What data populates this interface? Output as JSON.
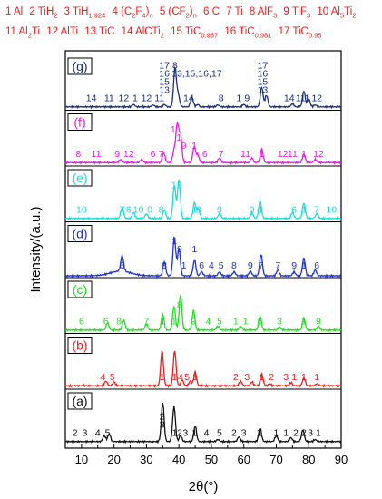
{
  "chart_data": {
    "type": "line",
    "x": {
      "label": "2θ(°)",
      "range": [
        5,
        90
      ],
      "ticks": [
        10,
        20,
        30,
        40,
        50,
        60,
        70,
        80,
        90
      ]
    },
    "y": {
      "label": "Intensity/(a.u.)",
      "units": "a.u."
    },
    "legend": {
      "placement": "top",
      "entries": [
        {
          "id": "1",
          "text": "Al"
        },
        {
          "id": "2",
          "text": "TiH",
          "sub": "2"
        },
        {
          "id": "3",
          "text": "TiH",
          "sub": "1.924"
        },
        {
          "id": "4",
          "text": "(C",
          "sub": "2",
          "text2": "F",
          "sub2": "4",
          "text3": ")",
          "sub3": "n"
        },
        {
          "id": "5",
          "text": "(CF",
          "sub": "2",
          "text2": ")",
          "sub2": "n"
        },
        {
          "id": "6",
          "text": "C"
        },
        {
          "id": "7",
          "text": "Ti"
        },
        {
          "id": "8",
          "text": "AlF",
          "sub": "3"
        },
        {
          "id": "9",
          "text": "TiF",
          "sub": "3"
        },
        {
          "id": "10",
          "text": "Al",
          "sub": "5",
          "text2": "Ti",
          "sub2": "2"
        },
        {
          "id": "11",
          "text": "Al",
          "sub": "2",
          "text2": "Ti"
        },
        {
          "id": "12",
          "text": "AlTi"
        },
        {
          "id": "13",
          "text": "TiC"
        },
        {
          "id": "14",
          "text": "AlCTi",
          "sub": "2"
        },
        {
          "id": "15",
          "text": "TiC",
          "sub": "0.957"
        },
        {
          "id": "16",
          "text": "TiC",
          "sub": "0.981"
        },
        {
          "id": "17",
          "text": "TiC",
          "sub": "0.95"
        }
      ]
    },
    "series": [
      {
        "name": "(g)",
        "color": "#1a2f7a",
        "peaks": [
          [
            26,
            0.06
          ],
          [
            32,
            0.05
          ],
          [
            35.5,
            0.06
          ],
          [
            38.8,
            1.0
          ],
          [
            39.8,
            0.3
          ],
          [
            44,
            0.25
          ],
          [
            45.8,
            0.06
          ],
          [
            52,
            0.05
          ],
          [
            60,
            0.06
          ],
          [
            65.5,
            0.5
          ],
          [
            67,
            0.3
          ],
          [
            75,
            0.08
          ],
          [
            78.5,
            0.4
          ],
          [
            80,
            0.2
          ],
          [
            82,
            0.05
          ]
        ],
        "annotations": [
          {
            "x": 13,
            "t": "14"
          },
          {
            "x": 18.5,
            "t": "11"
          },
          {
            "x": 23,
            "t": "12"
          },
          {
            "x": 26.5,
            "t": "1"
          },
          {
            "x": 30,
            "t": "12"
          },
          {
            "x": 34,
            "t": "11"
          },
          {
            "x": 35.5,
            "t": "13",
            "l": 1
          },
          {
            "x": 35.5,
            "t": "15",
            "l": 2
          },
          {
            "x": 35.5,
            "t": "16",
            "l": 3
          },
          {
            "x": 35.5,
            "t": "17",
            "l": 4
          },
          {
            "x": 38.8,
            "t": "8",
            "l": 4
          },
          {
            "x": 45.5,
            "t": "13,15,16,17",
            "l": 3
          },
          {
            "x": 43,
            "t": "14"
          },
          {
            "x": 53,
            "t": "8"
          },
          {
            "x": 58.5,
            "t": "1"
          },
          {
            "x": 61,
            "t": "9"
          },
          {
            "x": 65.8,
            "t": "13",
            "l": 1
          },
          {
            "x": 65.8,
            "t": "15",
            "l": 2
          },
          {
            "x": 65.8,
            "t": "16",
            "l": 3
          },
          {
            "x": 65.8,
            "t": "17",
            "l": 4
          },
          {
            "x": 74,
            "t": "14"
          },
          {
            "x": 77.5,
            "t": "11"
          },
          {
            "x": 79.5,
            "t": "1"
          },
          {
            "x": 82.5,
            "t": "12"
          }
        ]
      },
      {
        "name": "(f)",
        "color": "#e020e0",
        "peaks": [
          [
            22,
            0.08
          ],
          [
            28.5,
            0.08
          ],
          [
            35.3,
            0.25
          ],
          [
            38.5,
            0.3
          ],
          [
            39.5,
            1.0
          ],
          [
            40.5,
            0.7
          ],
          [
            44.7,
            0.4
          ],
          [
            45.8,
            0.2
          ],
          [
            52.5,
            0.12
          ],
          [
            62.5,
            0.12
          ],
          [
            65.5,
            0.35
          ],
          [
            78.5,
            0.22
          ],
          [
            82,
            0.08
          ]
        ],
        "annotations": [
          {
            "x": 9,
            "t": "8"
          },
          {
            "x": 14.5,
            "t": "11"
          },
          {
            "x": 21,
            "t": "9"
          },
          {
            "x": 24.5,
            "t": "12"
          },
          {
            "x": 32,
            "t": "6"
          },
          {
            "x": 34.5,
            "t": "7"
          },
          {
            "x": 38.2,
            "t": "1",
            "l": 3
          },
          {
            "x": 40,
            "t": "1",
            "l": 2
          },
          {
            "x": 41.5,
            "t": "9",
            "l": 1
          },
          {
            "x": 44.7,
            "t": "1",
            "l": 1
          },
          {
            "x": 48,
            "t": "6"
          },
          {
            "x": 53,
            "t": "7"
          },
          {
            "x": 60.5,
            "t": "11"
          },
          {
            "x": 65.5,
            "t": "1"
          },
          {
            "x": 72,
            "t": "12"
          },
          {
            "x": 75,
            "t": "11"
          },
          {
            "x": 78.5,
            "t": "1"
          },
          {
            "x": 83,
            "t": "12"
          }
        ]
      },
      {
        "name": "(e)",
        "color": "#20d8d8",
        "peaks": [
          [
            22.5,
            0.28
          ],
          [
            26,
            0.15
          ],
          [
            30,
            0.12
          ],
          [
            35.5,
            0.22
          ],
          [
            38.6,
            0.85
          ],
          [
            40,
            1.0
          ],
          [
            44.8,
            0.4
          ],
          [
            46,
            0.25
          ],
          [
            52.5,
            0.12
          ],
          [
            62.5,
            0.15
          ],
          [
            65,
            0.45
          ],
          [
            75,
            0.15
          ],
          [
            78.5,
            0.4
          ],
          [
            82.5,
            0.12
          ]
        ],
        "annotations": [
          {
            "x": 10,
            "t": "10"
          },
          {
            "x": 22.5,
            "t": "7"
          },
          {
            "x": 24.5,
            "t": "6"
          },
          {
            "x": 27.5,
            "t": "10"
          },
          {
            "x": 31,
            "t": "0"
          },
          {
            "x": 34.5,
            "t": "8"
          },
          {
            "x": 38.5,
            "t": "1",
            "l": 3
          },
          {
            "x": 40.2,
            "t": "9",
            "l": 3
          },
          {
            "x": 44.8,
            "t": "1"
          },
          {
            "x": 46,
            "t": "8"
          },
          {
            "x": 52.5,
            "t": "9"
          },
          {
            "x": 62.5,
            "t": "9"
          },
          {
            "x": 65.2,
            "t": "1"
          },
          {
            "x": 75.5,
            "t": "6"
          },
          {
            "x": 78.5,
            "t": "1"
          },
          {
            "x": 82.5,
            "t": "7"
          },
          {
            "x": 87,
            "t": "10"
          }
        ]
      },
      {
        "name": "(d)",
        "color": "#1e32d8",
        "peaks": [
          [
            22.5,
            0.4
          ],
          [
            35.5,
            0.35
          ],
          [
            38.6,
            1.0
          ],
          [
            40,
            0.7
          ],
          [
            44.8,
            0.4
          ],
          [
            47,
            0.1
          ],
          [
            52.5,
            0.1
          ],
          [
            57,
            0.1
          ],
          [
            62,
            0.12
          ],
          [
            65.3,
            0.55
          ],
          [
            70.5,
            0.15
          ],
          [
            75.5,
            0.1
          ],
          [
            78.5,
            0.45
          ],
          [
            82,
            0.15
          ]
        ],
        "annotations": [
          {
            "x": 22.5,
            "t": "6"
          },
          {
            "x": 35.5,
            "t": "8"
          },
          {
            "x": 38.6,
            "t": "1",
            "l": 3
          },
          {
            "x": 40.2,
            "t": "9",
            "l": 2
          },
          {
            "x": 41.5,
            "t": "1"
          },
          {
            "x": 44.8,
            "t": "1",
            "l": 2
          },
          {
            "x": 47,
            "t": "6"
          },
          {
            "x": 50,
            "t": "4"
          },
          {
            "x": 53,
            "t": "5"
          },
          {
            "x": 57,
            "t": "8"
          },
          {
            "x": 62,
            "t": "9"
          },
          {
            "x": 65.3,
            "t": "7"
          },
          {
            "x": 70.5,
            "t": "7"
          },
          {
            "x": 75.5,
            "t": "9"
          },
          {
            "x": 78.5,
            "t": "1"
          },
          {
            "x": 82.5,
            "t": "6"
          }
        ]
      },
      {
        "name": "(c)",
        "color": "#22dd22",
        "peaks": [
          [
            18,
            0.18
          ],
          [
            23,
            0.25
          ],
          [
            30,
            0.15
          ],
          [
            35,
            0.4
          ],
          [
            38.5,
            0.6
          ],
          [
            40.5,
            0.9
          ],
          [
            44.5,
            0.5
          ],
          [
            52,
            0.1
          ],
          [
            59,
            0.1
          ],
          [
            65,
            0.35
          ],
          [
            71,
            0.08
          ],
          [
            78.5,
            0.3
          ],
          [
            83,
            0.1
          ]
        ],
        "annotations": [
          {
            "x": 10,
            "t": "6"
          },
          {
            "x": 17.5,
            "t": "6"
          },
          {
            "x": 21.5,
            "t": "8"
          },
          {
            "x": 30,
            "t": "7"
          },
          {
            "x": 35,
            "t": "1"
          },
          {
            "x": 38.5,
            "t": "1"
          },
          {
            "x": 40.2,
            "t": "8",
            "l": 2
          },
          {
            "x": 44.5,
            "t": "9"
          },
          {
            "x": 49,
            "t": "4"
          },
          {
            "x": 52.5,
            "t": "5"
          },
          {
            "x": 57.5,
            "t": "1"
          },
          {
            "x": 60.5,
            "t": "1"
          },
          {
            "x": 65,
            "t": "6"
          },
          {
            "x": 71,
            "t": "3"
          },
          {
            "x": 78.5,
            "t": "1"
          },
          {
            "x": 83,
            "t": "9"
          }
        ]
      },
      {
        "name": "(b)",
        "color": "#e8201f",
        "peaks": [
          [
            17.5,
            0.12
          ],
          [
            20,
            0.1
          ],
          [
            34.8,
            0.9
          ],
          [
            38.7,
            0.9
          ],
          [
            41,
            0.15
          ],
          [
            43.5,
            0.12
          ],
          [
            45,
            0.35
          ],
          [
            59,
            0.12
          ],
          [
            62.5,
            0.1
          ],
          [
            65.5,
            0.3
          ],
          [
            68,
            0.05
          ],
          [
            74.5,
            0.08
          ],
          [
            78.5,
            0.2
          ],
          [
            82.5,
            0.05
          ]
        ],
        "annotations": [
          {
            "x": 16.5,
            "t": "4"
          },
          {
            "x": 19.5,
            "t": "5"
          },
          {
            "x": 34.8,
            "t": "1"
          },
          {
            "x": 38.7,
            "t": "1"
          },
          {
            "x": 40.5,
            "t": "4"
          },
          {
            "x": 42.5,
            "t": "5"
          },
          {
            "x": 45,
            "t": "1"
          },
          {
            "x": 57.5,
            "t": "2"
          },
          {
            "x": 61,
            "t": "3"
          },
          {
            "x": 65.5,
            "t": "1"
          },
          {
            "x": 68.5,
            "t": "2"
          },
          {
            "x": 73,
            "t": "3"
          },
          {
            "x": 75.5,
            "t": "1"
          },
          {
            "x": 78.5,
            "t": "1"
          },
          {
            "x": 82.5,
            "t": "1"
          }
        ]
      },
      {
        "name": "(a)",
        "color": "#111111",
        "peaks": [
          [
            17,
            0.15
          ],
          [
            18.5,
            0.2
          ],
          [
            35,
            1.0
          ],
          [
            38.5,
            0.9
          ],
          [
            40.5,
            0.15
          ],
          [
            45,
            0.4
          ],
          [
            52,
            0.05
          ],
          [
            58.5,
            0.12
          ],
          [
            65,
            0.35
          ],
          [
            70,
            0.15
          ],
          [
            74.5,
            0.1
          ],
          [
            78.2,
            0.3
          ],
          [
            82,
            0.05
          ]
        ],
        "annotations": [
          {
            "x": 8,
            "t": "2"
          },
          {
            "x": 11,
            "t": "3"
          },
          {
            "x": 15,
            "t": "4"
          },
          {
            "x": 18,
            "t": "5"
          },
          {
            "x": 34.8,
            "t": "3",
            "l": 1
          },
          {
            "x": 34.8,
            "t": "2",
            "l": 2
          },
          {
            "x": 38.7,
            "t": "1"
          },
          {
            "x": 40.2,
            "t": "2"
          },
          {
            "x": 42,
            "t": "3"
          },
          {
            "x": 44.8,
            "t": "1"
          },
          {
            "x": 48.5,
            "t": "4"
          },
          {
            "x": 52.5,
            "t": "5"
          },
          {
            "x": 57,
            "t": "2"
          },
          {
            "x": 60,
            "t": "3"
          },
          {
            "x": 64.7,
            "t": "1"
          },
          {
            "x": 70,
            "t": "1"
          },
          {
            "x": 73,
            "t": "1"
          },
          {
            "x": 76,
            "t": "2"
          },
          {
            "x": 78.5,
            "t": "2"
          },
          {
            "x": 80.5,
            "t": "3"
          },
          {
            "x": 83,
            "t": "1"
          }
        ]
      }
    ]
  }
}
